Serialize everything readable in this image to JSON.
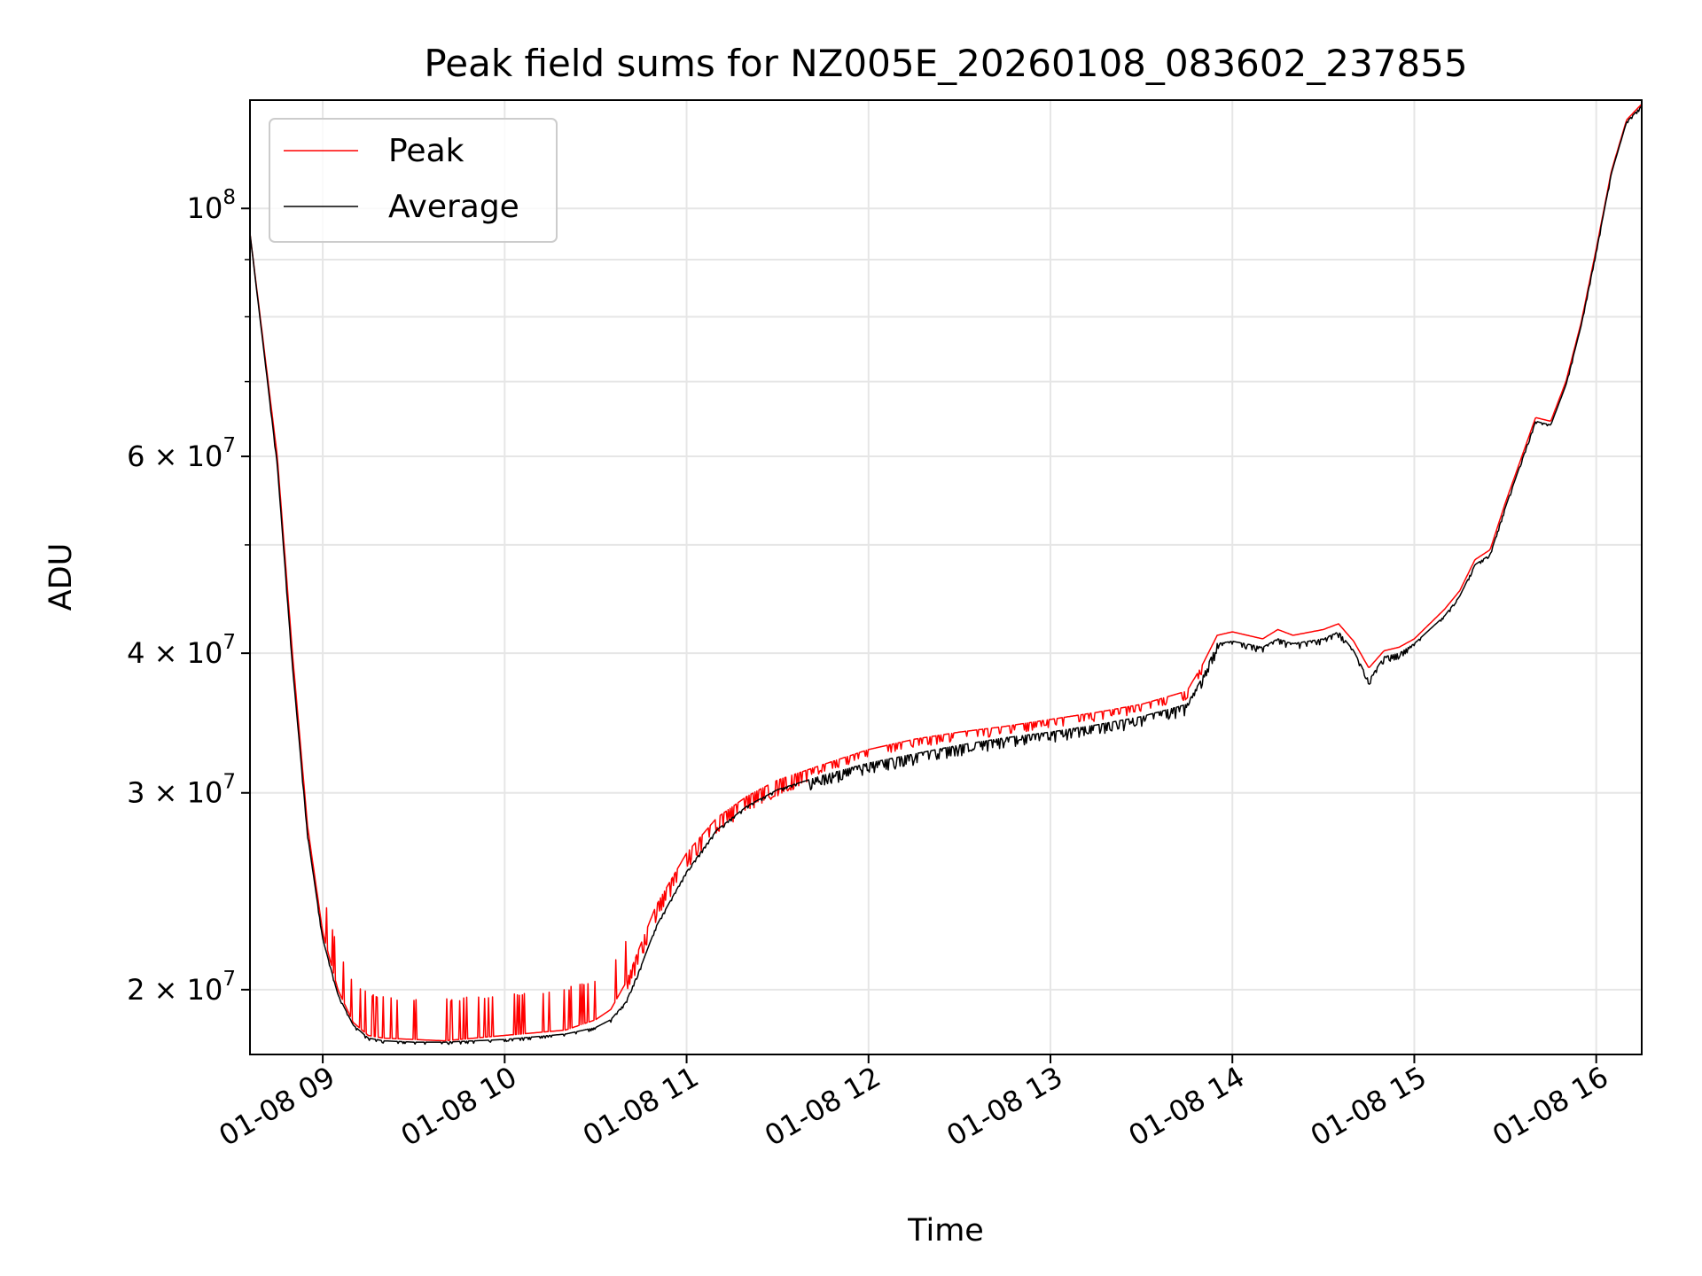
{
  "chart_data": {
    "type": "line",
    "title": "Peak field sums for NZ005E_20260108_083602_237855",
    "xlabel": "Time",
    "ylabel": "ADU",
    "yscale": "log",
    "ylim": [
      17500000,
      125000000
    ],
    "xlim": [
      "01-08 08:36",
      "01-08 16:15"
    ],
    "grid": true,
    "legend_position": "top-left",
    "x_ticks": [
      "01-08 09",
      "01-08 10",
      "01-08 11",
      "01-08 12",
      "01-08 13",
      "01-08 14",
      "01-08 15",
      "01-08 16"
    ],
    "y_ticks": [
      {
        "value": 20000000,
        "label": "2 × 10^7"
      },
      {
        "value": 30000000,
        "label": "3 × 10^7"
      },
      {
        "value": 40000000,
        "label": "4 × 10^7"
      },
      {
        "value": 60000000,
        "label": "6 × 10^7"
      },
      {
        "value": 100000000,
        "label": "10^8"
      }
    ],
    "series": [
      {
        "name": "Peak",
        "color": "#ff0000",
        "x": [
          "01-08 08:36",
          "01-08 08:45",
          "01-08 08:50",
          "01-08 08:55",
          "01-08 09:00",
          "01-08 09:05",
          "01-08 09:10",
          "01-08 09:15",
          "01-08 09:20",
          "01-08 09:30",
          "01-08 09:40",
          "01-08 09:50",
          "01-08 10:00",
          "01-08 10:10",
          "01-08 10:20",
          "01-08 10:30",
          "01-08 10:35",
          "01-08 10:40",
          "01-08 10:45",
          "01-08 10:50",
          "01-08 11:00",
          "01-08 11:10",
          "01-08 11:20",
          "01-08 11:30",
          "01-08 11:45",
          "01-08 12:00",
          "01-08 12:15",
          "01-08 12:30",
          "01-08 12:45",
          "01-08 13:00",
          "01-08 13:15",
          "01-08 13:30",
          "01-08 13:45",
          "01-08 13:50",
          "01-08 13:55",
          "01-08 14:00",
          "01-08 14:10",
          "01-08 14:15",
          "01-08 14:20",
          "01-08 14:30",
          "01-08 14:35",
          "01-08 14:40",
          "01-08 14:45",
          "01-08 14:50",
          "01-08 14:55",
          "01-08 15:00",
          "01-08 15:10",
          "01-08 15:15",
          "01-08 15:20",
          "01-08 15:25",
          "01-08 15:30",
          "01-08 15:35",
          "01-08 15:40",
          "01-08 15:45",
          "01-08 15:50",
          "01-08 15:55",
          "01-08 16:00",
          "01-08 16:05",
          "01-08 16:10",
          "01-08 16:15"
        ],
        "values": [
          95000000,
          60000000,
          40000000,
          28000000,
          22500000,
          20000000,
          18700000,
          18200000,
          18100000,
          18050000,
          18000000,
          18100000,
          18200000,
          18300000,
          18400000,
          18800000,
          19200000,
          20300000,
          22000000,
          23800000,
          26500000,
          28500000,
          29800000,
          30800000,
          31800000,
          32800000,
          33500000,
          34000000,
          34400000,
          34900000,
          35400000,
          36000000,
          37000000,
          39000000,
          41500000,
          41800000,
          41200000,
          42000000,
          41500000,
          42000000,
          42500000,
          41000000,
          38800000,
          40200000,
          40500000,
          41200000,
          43800000,
          45500000,
          48500000,
          49500000,
          54500000,
          59500000,
          65000000,
          64500000,
          70000000,
          79000000,
          92000000,
          108000000,
          120000000,
          124000000
        ]
      },
      {
        "name": "Average",
        "color": "#000000",
        "x": [
          "01-08 08:36",
          "01-08 08:45",
          "01-08 08:50",
          "01-08 08:55",
          "01-08 09:00",
          "01-08 09:05",
          "01-08 09:10",
          "01-08 09:15",
          "01-08 09:20",
          "01-08 09:30",
          "01-08 09:40",
          "01-08 09:50",
          "01-08 10:00",
          "01-08 10:10",
          "01-08 10:20",
          "01-08 10:30",
          "01-08 10:35",
          "01-08 10:40",
          "01-08 10:45",
          "01-08 10:50",
          "01-08 11:00",
          "01-08 11:10",
          "01-08 11:20",
          "01-08 11:30",
          "01-08 11:45",
          "01-08 12:00",
          "01-08 12:15",
          "01-08 12:30",
          "01-08 12:45",
          "01-08 13:00",
          "01-08 13:15",
          "01-08 13:30",
          "01-08 13:45",
          "01-08 13:50",
          "01-08 13:55",
          "01-08 14:00",
          "01-08 14:10",
          "01-08 14:15",
          "01-08 14:20",
          "01-08 14:30",
          "01-08 14:35",
          "01-08 14:40",
          "01-08 14:45",
          "01-08 14:50",
          "01-08 14:55",
          "01-08 15:00",
          "01-08 15:10",
          "01-08 15:15",
          "01-08 15:20",
          "01-08 15:25",
          "01-08 15:30",
          "01-08 15:35",
          "01-08 15:40",
          "01-08 15:45",
          "01-08 15:50",
          "01-08 15:55",
          "01-08 16:00",
          "01-08 16:05",
          "01-08 16:10",
          "01-08 16:15"
        ],
        "values": [
          95000000,
          59000000,
          39000000,
          27500000,
          22200000,
          19800000,
          18600000,
          18100000,
          18000000,
          17950000,
          17950000,
          18000000,
          18050000,
          18150000,
          18250000,
          18500000,
          18800000,
          19500000,
          21000000,
          22800000,
          25500000,
          27800000,
          29200000,
          30200000,
          31100000,
          31900000,
          32500000,
          33100000,
          33600000,
          34000000,
          34500000,
          35100000,
          36000000,
          38000000,
          40800000,
          41000000,
          40500000,
          41200000,
          40800000,
          41200000,
          41800000,
          40200000,
          37800000,
          39700000,
          40000000,
          40800000,
          43200000,
          45000000,
          48000000,
          49000000,
          54000000,
          59000000,
          64500000,
          64000000,
          69500000,
          78500000,
          91500000,
          107500000,
          119500000,
          123500000
        ]
      }
    ]
  }
}
